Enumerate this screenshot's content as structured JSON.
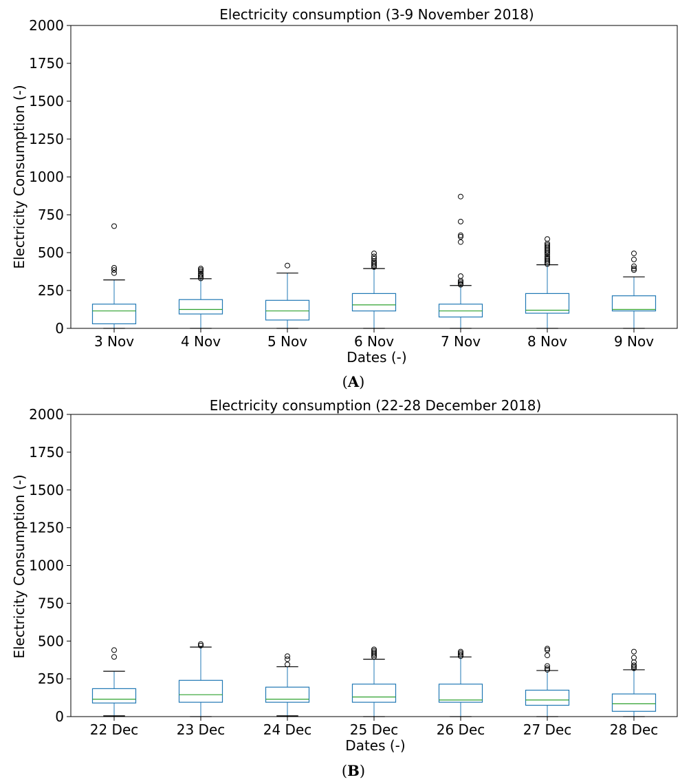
{
  "colors": {
    "box": "#1f77b4",
    "median": "#2ca02c",
    "whisker": "#000000",
    "flier": "#000000"
  },
  "panels": [
    {
      "tag_prefix": "(",
      "tag_letter": "A",
      "tag_suffix": ")"
    },
    {
      "tag_prefix": "(",
      "tag_letter": "B",
      "tag_suffix": ")"
    }
  ],
  "chart_data": [
    {
      "type": "box",
      "title": "Electricity consumption (3-9 November 2018)",
      "xlabel": "Dates (-)",
      "ylabel": "Electricity Consumption (-)",
      "ylim": [
        0,
        2000
      ],
      "yticks": [
        0,
        250,
        500,
        750,
        1000,
        1250,
        1500,
        1750,
        2000
      ],
      "grid": false,
      "categories": [
        "3 Nov",
        "4 Nov",
        "5 Nov",
        "6 Nov",
        "7 Nov",
        "8 Nov",
        "9 Nov"
      ],
      "boxes": [
        {
          "whislo": 0,
          "q1": 30,
          "med": 115,
          "q3": 160,
          "whishi": 320,
          "fliers": [
            365,
            385,
            400,
            675
          ]
        },
        {
          "whislo": 0,
          "q1": 95,
          "med": 125,
          "q3": 190,
          "whishi": 328,
          "fliers": [
            330,
            340,
            350,
            360,
            375,
            385,
            395
          ]
        },
        {
          "whislo": 0,
          "q1": 55,
          "med": 115,
          "q3": 185,
          "whishi": 365,
          "fliers": [
            415
          ]
        },
        {
          "whislo": 0,
          "q1": 115,
          "med": 155,
          "q3": 230,
          "whishi": 395,
          "fliers": [
            405,
            415,
            425,
            435,
            445,
            460,
            475,
            495
          ]
        },
        {
          "whislo": 0,
          "q1": 75,
          "med": 115,
          "q3": 160,
          "whishi": 283,
          "fliers": [
            288,
            295,
            305,
            315,
            345,
            570,
            605,
            615,
            705,
            870
          ]
        },
        {
          "whislo": 0,
          "q1": 100,
          "med": 120,
          "q3": 230,
          "whishi": 420,
          "fliers": [
            425,
            435,
            445,
            455,
            465,
            475,
            490,
            500,
            510,
            520,
            530,
            540,
            550,
            560,
            590
          ]
        },
        {
          "whislo": 0,
          "q1": 115,
          "med": 125,
          "q3": 215,
          "whishi": 340,
          "fliers": [
            385,
            395,
            410,
            455,
            495
          ]
        }
      ]
    },
    {
      "type": "box",
      "title": "Electricity consumption (22-28 December 2018)",
      "xlabel": "Dates (-)",
      "ylabel": "Electricity Consumption (-)",
      "ylim": [
        0,
        2000
      ],
      "yticks": [
        0,
        250,
        500,
        750,
        1000,
        1250,
        1500,
        1750,
        2000
      ],
      "grid": false,
      "categories": [
        "22 Dec",
        "23 Dec",
        "24 Dec",
        "25 Dec",
        "26 Dec",
        "27 Dec",
        "28 Dec"
      ],
      "boxes": [
        {
          "whislo": 5,
          "q1": 90,
          "med": 115,
          "q3": 185,
          "whishi": 300,
          "fliers": [
            395,
            440
          ]
        },
        {
          "whislo": 0,
          "q1": 95,
          "med": 145,
          "q3": 240,
          "whishi": 460,
          "fliers": [
            470,
            480
          ]
        },
        {
          "whislo": 5,
          "q1": 95,
          "med": 115,
          "q3": 195,
          "whishi": 330,
          "fliers": [
            345,
            380,
            400
          ]
        },
        {
          "whislo": 0,
          "q1": 95,
          "med": 130,
          "q3": 215,
          "whishi": 380,
          "fliers": [
            395,
            405,
            415,
            425,
            435,
            445
          ]
        },
        {
          "whislo": 0,
          "q1": 95,
          "med": 110,
          "q3": 215,
          "whishi": 395,
          "fliers": [
            400,
            410,
            420,
            430
          ]
        },
        {
          "whislo": 0,
          "q1": 75,
          "med": 110,
          "q3": 175,
          "whishi": 305,
          "fliers": [
            310,
            320,
            335,
            405,
            440,
            450
          ]
        },
        {
          "whislo": 0,
          "q1": 35,
          "med": 85,
          "q3": 150,
          "whishi": 310,
          "fliers": [
            320,
            330,
            340,
            360,
            390,
            430
          ]
        }
      ]
    }
  ]
}
